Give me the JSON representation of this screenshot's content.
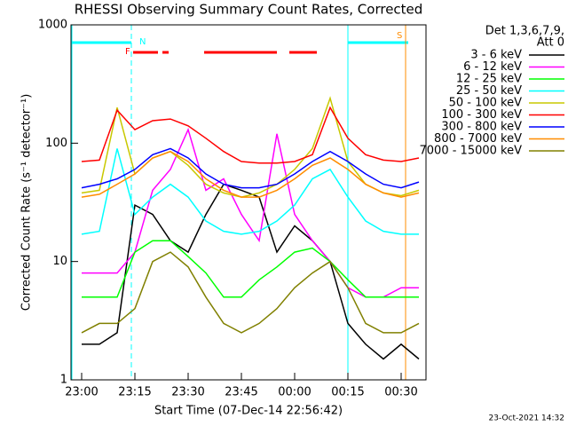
{
  "chart_data": {
    "type": "line",
    "title": "RHESSI Observing Summary Count Rates, Corrected",
    "x_label": "Start Time (07-Dec-14 22:56:42)",
    "y_label": "Corrected Count Rate (s⁻¹ detector⁻¹)",
    "legend_title": [
      "Det 1,3,6,7,9,",
      "Att 0"
    ],
    "annotations": [
      "F",
      "N",
      "S",
      "23-Oct-2021 14:32"
    ],
    "y_log": true,
    "ylim": [
      1,
      1000
    ],
    "yticks": [
      1,
      10,
      100,
      1000
    ],
    "xlim": [
      "22:57",
      "00:37"
    ],
    "xticks": [
      "23:00",
      "23:15",
      "23:30",
      "23:45",
      "00:00",
      "00:15",
      "00:30"
    ],
    "x": [
      "23:00",
      "23:05",
      "23:10",
      "23:15",
      "23:20",
      "23:25",
      "23:30",
      "23:35",
      "23:40",
      "23:45",
      "23:50",
      "23:55",
      "00:00",
      "00:05",
      "00:10",
      "00:15",
      "00:20",
      "00:25",
      "00:30",
      "00:35"
    ],
    "series": [
      {
        "name": "3 - 6 keV",
        "color": "#000000",
        "values": [
          2,
          2,
          2.5,
          30,
          25,
          15,
          12,
          25,
          45,
          40,
          35,
          12,
          20,
          15,
          10,
          3,
          2,
          1.5,
          2,
          1.5
        ]
      },
      {
        "name": "6 - 12 keV",
        "color": "#ff00ff",
        "values": [
          8,
          8,
          8,
          12,
          40,
          60,
          130,
          40,
          50,
          25,
          15,
          120,
          25,
          15,
          10,
          6,
          5,
          5,
          6,
          6
        ]
      },
      {
        "name": "12 - 25 keV",
        "color": "#00ff00",
        "values": [
          5,
          5,
          5,
          12,
          15,
          15,
          11,
          8,
          5,
          5,
          7,
          9,
          12,
          13,
          10,
          7,
          5,
          5,
          5,
          5
        ]
      },
      {
        "name": "25 - 50 keV",
        "color": "#00ffff",
        "values": [
          17,
          18,
          90,
          25,
          35,
          45,
          35,
          22,
          18,
          17,
          18,
          22,
          30,
          50,
          60,
          35,
          22,
          18,
          17,
          17
        ]
      },
      {
        "name": "50 - 100 keV",
        "color": "#c8c800",
        "values": [
          38,
          40,
          200,
          55,
          75,
          85,
          65,
          45,
          38,
          35,
          38,
          45,
          60,
          90,
          240,
          70,
          45,
          38,
          36,
          40
        ]
      },
      {
        "name": "100 - 300 keV",
        "color": "#ff0000",
        "values": [
          70,
          72,
          190,
          130,
          155,
          160,
          140,
          110,
          85,
          70,
          68,
          68,
          70,
          80,
          200,
          110,
          80,
          72,
          70,
          75
        ]
      },
      {
        "name": "300 - 800 keV",
        "color": "#0000ff",
        "values": [
          42,
          45,
          50,
          60,
          80,
          90,
          75,
          55,
          45,
          42,
          42,
          45,
          55,
          70,
          85,
          70,
          55,
          45,
          42,
          47
        ]
      },
      {
        "name": "800 - 7000 keV",
        "color": "#ff8c00",
        "values": [
          35,
          37,
          45,
          55,
          75,
          85,
          70,
          50,
          40,
          35,
          35,
          40,
          50,
          65,
          75,
          60,
          45,
          38,
          35,
          38
        ]
      },
      {
        "name": "7000 - 15000 keV",
        "color": "#808000",
        "values": [
          2.5,
          3,
          3,
          4,
          10,
          12,
          9,
          5,
          3,
          2.5,
          3,
          4,
          6,
          8,
          10,
          6,
          3,
          2.5,
          2.5,
          3
        ]
      }
    ]
  }
}
